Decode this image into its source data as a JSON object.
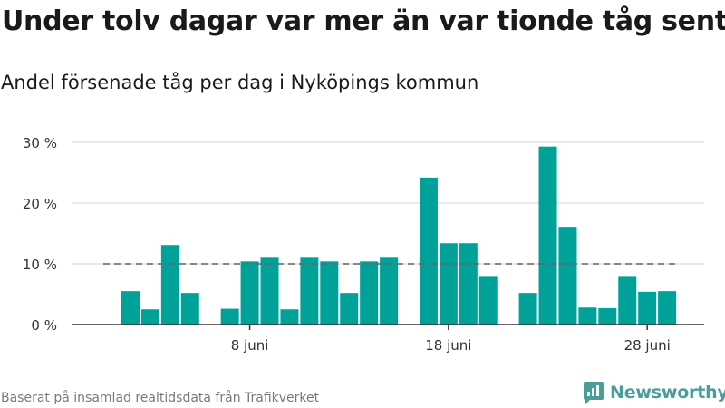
{
  "header": {
    "title": "Under tolv dagar var mer än var tionde tåg sent",
    "subtitle": "Andel försenade tåg per dag i Nyköpings kommun"
  },
  "footer": {
    "source": "Baserat på insamlad realtidsdata från Trafikverket",
    "brand": "Newsworthy",
    "brand_color": "#4b9e96"
  },
  "chart_data": {
    "type": "bar",
    "title": "Under tolv dagar var mer än var tionde tåg sent",
    "subtitle": "Andel försenade tåg per dag i Nyköpings kommun",
    "x": [
      "2 juni",
      "3 juni",
      "4 juni",
      "5 juni",
      "6 juni",
      "7 juni",
      "8 juni",
      "9 juni",
      "10 juni",
      "11 juni",
      "12 juni",
      "13 juni",
      "14 juni",
      "15 juni",
      "16 juni",
      "17 juni",
      "18 juni",
      "19 juni",
      "20 juni",
      "21 juni",
      "22 juni",
      "23 juni",
      "24 juni",
      "25 juni",
      "26 juni",
      "27 juni",
      "28 juni",
      "29 juni"
    ],
    "values": [
      5.5,
      2.5,
      13.1,
      5.2,
      null,
      2.6,
      10.4,
      11.0,
      2.5,
      11.0,
      10.4,
      5.2,
      10.4,
      11.0,
      null,
      24.2,
      13.4,
      13.4,
      8.0,
      null,
      5.2,
      29.3,
      16.1,
      2.8,
      2.7,
      8.0,
      5.4,
      5.5
    ],
    "x_ticks": [
      "8 juni",
      "18 juni",
      "28 juni"
    ],
    "y_ticks": [
      "0 %",
      "10 %",
      "20 %",
      "30 %"
    ],
    "ylim": [
      0,
      30
    ],
    "reference_line": 10,
    "bar_color": "#00a199",
    "grid": true,
    "xlabel": "",
    "ylabel": ""
  }
}
